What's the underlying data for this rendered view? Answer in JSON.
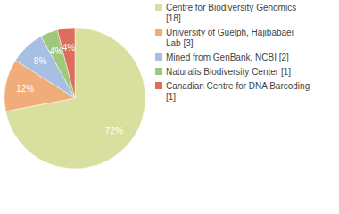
{
  "chart_data": {
    "type": "pie",
    "categories": [
      "Centre for Biodiversity Genomics [18]",
      "University of Guelph, Hajibabaei Lab [3]",
      "Mined from GenBank, NCBI [2]",
      "Naturalis Biodiversity Center [1]",
      "Canadian Centre for DNA Barcoding [1]"
    ],
    "values": [
      72,
      12,
      8,
      4,
      4
    ],
    "value_labels": [
      "72%",
      "12%",
      "8%",
      "4%",
      "4%"
    ],
    "colors": [
      "#d9df9f",
      "#f0ad7a",
      "#a6bfe3",
      "#9fc87d",
      "#de6d5c"
    ],
    "data_labels": true,
    "legend": "top-right"
  }
}
